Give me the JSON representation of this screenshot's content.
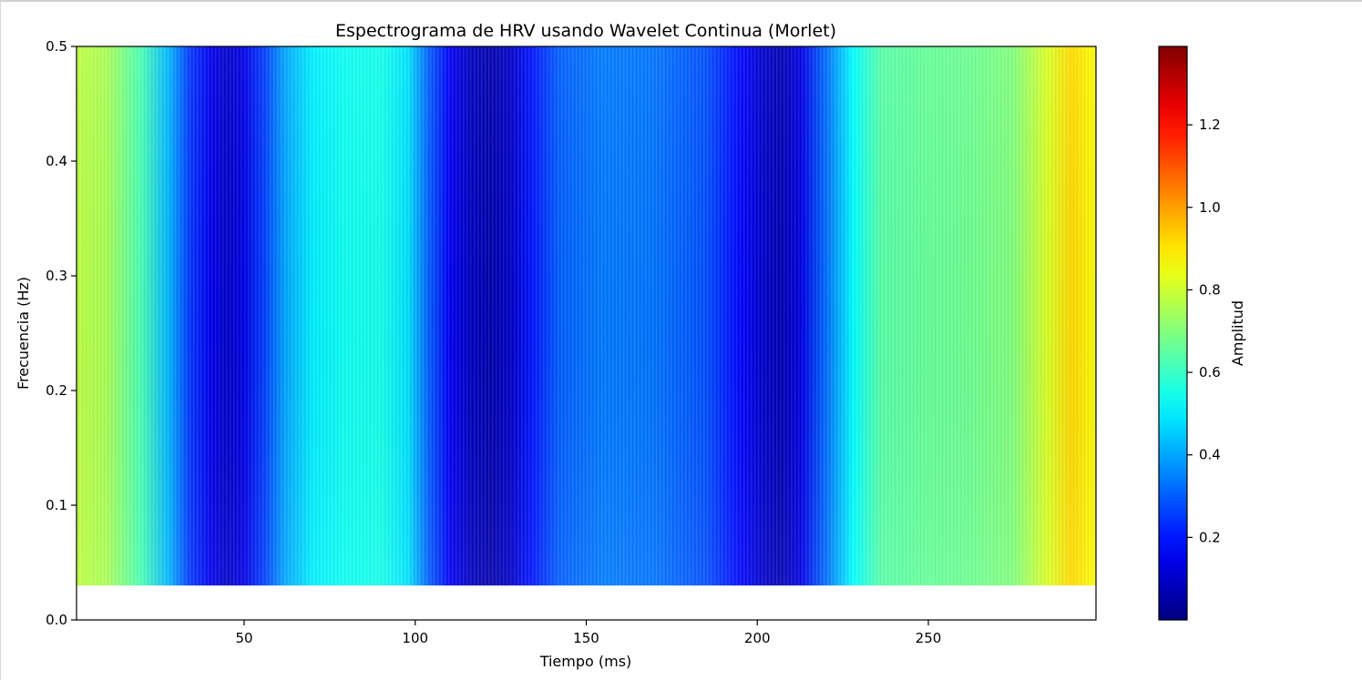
{
  "chart_data": {
    "type": "heatmap",
    "title": "Espectrograma de HRV usando Wavelet Continua (Morlet)",
    "xlabel": "Tiempo (ms)",
    "ylabel": "Frecuencia (Hz)",
    "xlim": [
      1,
      299
    ],
    "ylim": [
      0,
      0.5
    ],
    "x_ticks": [
      50,
      100,
      150,
      200,
      250
    ],
    "y_ticks": [
      0.0,
      0.1,
      0.2,
      0.3,
      0.4,
      0.5
    ],
    "x_tick_labels": [
      "50",
      "100",
      "150",
      "200",
      "250"
    ],
    "y_tick_labels": [
      "0.0",
      "0.1",
      "0.2",
      "0.3",
      "0.4",
      "0.5"
    ],
    "frequency_range": [
      0.03,
      0.5
    ],
    "colormap": "jet",
    "colorbar": {
      "label": "Amplitud",
      "range": [
        0.0,
        1.39
      ],
      "ticks": [
        0.2,
        0.4,
        0.6,
        0.8,
        1.0,
        1.2
      ],
      "tick_labels": [
        "0.2",
        "0.4",
        "0.6",
        "0.8",
        "1.0",
        "1.2"
      ]
    },
    "amplitude_profile": [
      {
        "t": 1,
        "amp": 0.78
      },
      {
        "t": 10,
        "amp": 0.75
      },
      {
        "t": 20,
        "amp": 0.62
      },
      {
        "t": 28,
        "amp": 0.42
      },
      {
        "t": 34,
        "amp": 0.25
      },
      {
        "t": 40,
        "amp": 0.15
      },
      {
        "t": 45,
        "amp": 0.1
      },
      {
        "t": 50,
        "amp": 0.14
      },
      {
        "t": 56,
        "amp": 0.26
      },
      {
        "t": 62,
        "amp": 0.4
      },
      {
        "t": 70,
        "amp": 0.5
      },
      {
        "t": 80,
        "amp": 0.54
      },
      {
        "t": 90,
        "amp": 0.55
      },
      {
        "t": 98,
        "amp": 0.48
      },
      {
        "t": 104,
        "amp": 0.3
      },
      {
        "t": 110,
        "amp": 0.16
      },
      {
        "t": 116,
        "amp": 0.09
      },
      {
        "t": 122,
        "amp": 0.06
      },
      {
        "t": 128,
        "amp": 0.1
      },
      {
        "t": 134,
        "amp": 0.2
      },
      {
        "t": 142,
        "amp": 0.3
      },
      {
        "t": 155,
        "amp": 0.34
      },
      {
        "t": 170,
        "amp": 0.33
      },
      {
        "t": 185,
        "amp": 0.28
      },
      {
        "t": 195,
        "amp": 0.18
      },
      {
        "t": 202,
        "amp": 0.1
      },
      {
        "t": 207,
        "amp": 0.07
      },
      {
        "t": 213,
        "amp": 0.14
      },
      {
        "t": 220,
        "amp": 0.32
      },
      {
        "t": 228,
        "amp": 0.52
      },
      {
        "t": 236,
        "amp": 0.64
      },
      {
        "t": 250,
        "amp": 0.66
      },
      {
        "t": 262,
        "amp": 0.67
      },
      {
        "t": 275,
        "amp": 0.7
      },
      {
        "t": 285,
        "amp": 0.82
      },
      {
        "t": 292,
        "amp": 0.92
      },
      {
        "t": 299,
        "amp": 0.86
      }
    ]
  }
}
